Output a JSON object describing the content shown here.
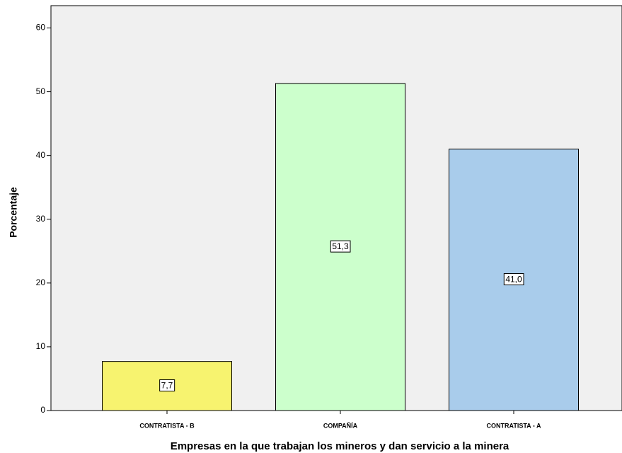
{
  "chart_data": {
    "type": "bar",
    "xlabel": "Empresas en la que trabajan los mineros y dan servicio a la minera",
    "ylabel": "Porcentaje",
    "categories": [
      "CONTRATISTA - B",
      "COMPAÑÍA",
      "CONTRATISTA - A"
    ],
    "values": [
      7.7,
      51.3,
      41.0
    ],
    "value_labels": [
      "7,7",
      "51,3",
      "41,0"
    ],
    "colors": [
      "#f7f36f",
      "#ccffcc",
      "#a9cceb"
    ],
    "ylim": [
      0,
      63.5
    ],
    "yticks": [
      0,
      10,
      20,
      30,
      40,
      50,
      60
    ],
    "grid": false
  }
}
